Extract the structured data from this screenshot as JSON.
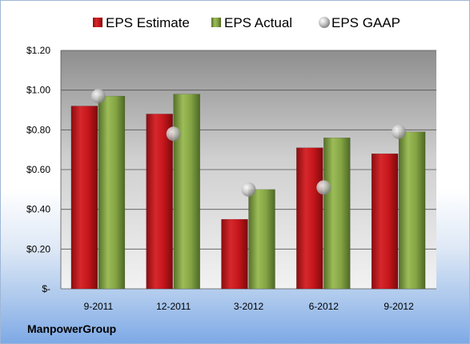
{
  "chart_data": {
    "type": "bar",
    "categories": [
      "9-2011",
      "12-2011",
      "3-2012",
      "6-2012",
      "9-2012"
    ],
    "series": [
      {
        "name": "EPS Estimate",
        "kind": "bar",
        "color": "#c0161b",
        "values": [
          0.92,
          0.88,
          0.35,
          0.71,
          0.68
        ]
      },
      {
        "name": "EPS Actual",
        "kind": "bar",
        "color": "#7a9a3a",
        "values": [
          0.97,
          0.98,
          0.5,
          0.76,
          0.79
        ]
      },
      {
        "name": "EPS GAAP",
        "kind": "point",
        "color": "#a8a8a8",
        "values": [
          0.97,
          0.78,
          0.5,
          0.51,
          0.79
        ]
      }
    ],
    "yticks": [
      "$-",
      "$0.20",
      "$0.40",
      "$0.60",
      "$0.80",
      "$1.00",
      "$1.20"
    ],
    "ylim": [
      0,
      1.2
    ],
    "legend_position": "top",
    "grid": true
  },
  "brand": "ManpowerGroup"
}
